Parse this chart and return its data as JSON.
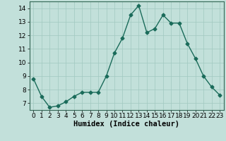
{
  "x": [
    0,
    1,
    2,
    3,
    4,
    5,
    6,
    7,
    8,
    9,
    10,
    11,
    12,
    13,
    14,
    15,
    16,
    17,
    18,
    19,
    20,
    21,
    22,
    23
  ],
  "y": [
    8.8,
    7.5,
    6.7,
    6.8,
    7.1,
    7.5,
    7.8,
    7.8,
    7.8,
    9.0,
    10.7,
    11.8,
    13.5,
    14.2,
    12.2,
    12.5,
    13.5,
    12.9,
    12.9,
    11.4,
    10.3,
    9.0,
    8.2,
    7.6
  ],
  "line_color": "#1a6b5a",
  "marker": "D",
  "marker_size": 2.5,
  "linewidth": 1.0,
  "xlabel": "Humidex (Indice chaleur)",
  "xlim": [
    -0.5,
    23.5
  ],
  "ylim": [
    6.5,
    14.5
  ],
  "yticks": [
    7,
    8,
    9,
    10,
    11,
    12,
    13,
    14
  ],
  "xticks": [
    0,
    1,
    2,
    3,
    4,
    5,
    6,
    7,
    8,
    9,
    10,
    11,
    12,
    13,
    14,
    15,
    16,
    17,
    18,
    19,
    20,
    21,
    22,
    23
  ],
  "bg_color": "#c2e0da",
  "grid_color": "#a0c8c0",
  "xlabel_fontsize": 7.5,
  "tick_fontsize": 6.5
}
